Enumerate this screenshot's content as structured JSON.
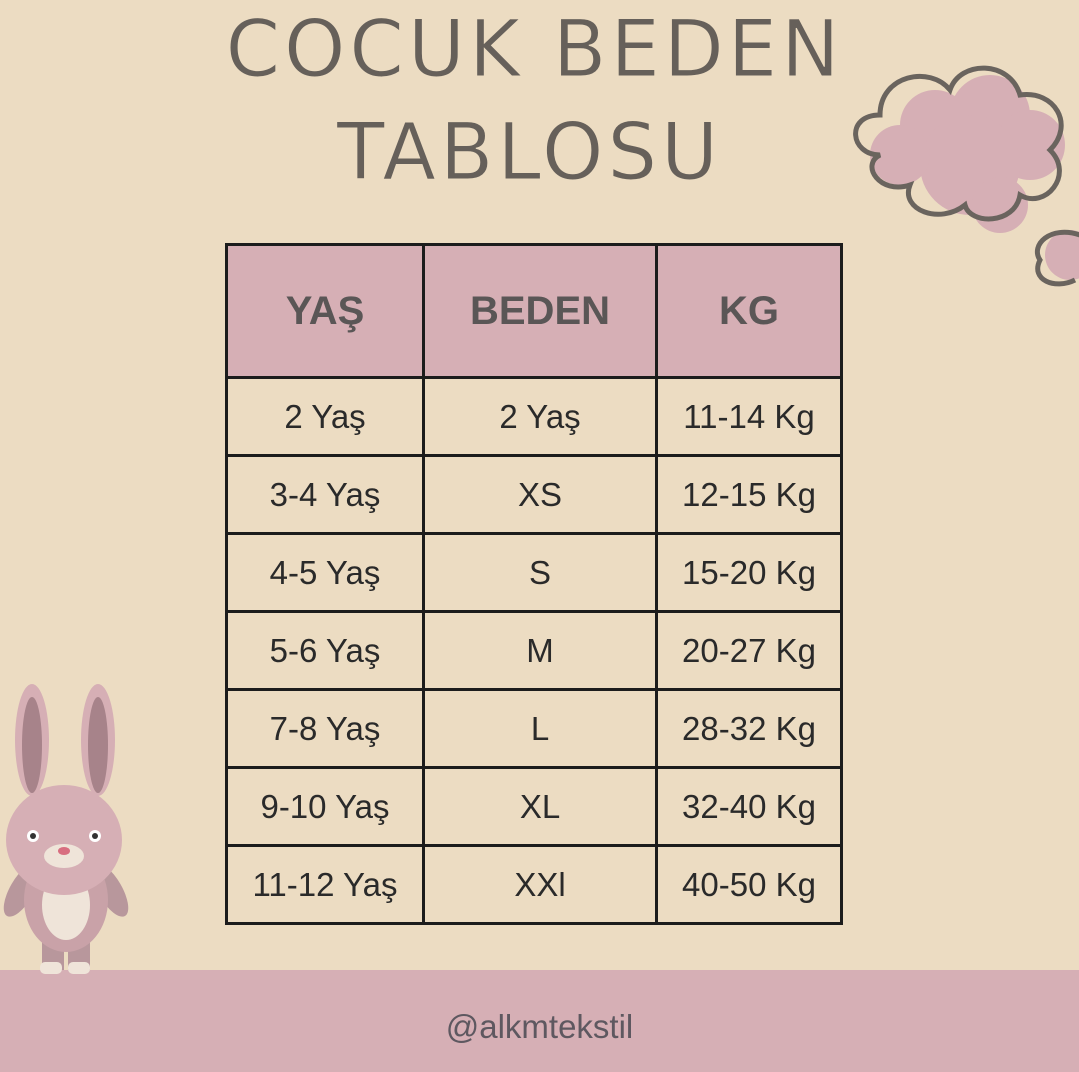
{
  "title": {
    "line1": "COCUK BEDEN",
    "line2": "TABLOSU"
  },
  "table": {
    "headers": [
      "YAŞ",
      "BEDEN",
      "KG"
    ],
    "rows": [
      [
        "2 Yaş",
        "2 Yaş",
        "11-14 Kg"
      ],
      [
        "3-4 Yaş",
        "XS",
        "12-15 Kg"
      ],
      [
        "4-5 Yaş",
        "S",
        "15-20 Kg"
      ],
      [
        "5-6 Yaş",
        "M",
        "20-27 Kg"
      ],
      [
        "7-8 Yaş",
        "L",
        "28-32 Kg"
      ],
      [
        "9-10 Yaş",
        "XL",
        "32-40 Kg"
      ],
      [
        "11-12 Yaş",
        "XXl",
        "40-50 Kg"
      ]
    ]
  },
  "footer": {
    "handle": "@alkmtekstil"
  },
  "colors": {
    "background": "#ecdcc2",
    "accent": "#d6afb5",
    "text": "#66605a"
  },
  "decorations": [
    "cloud-icon",
    "bunny-icon"
  ]
}
